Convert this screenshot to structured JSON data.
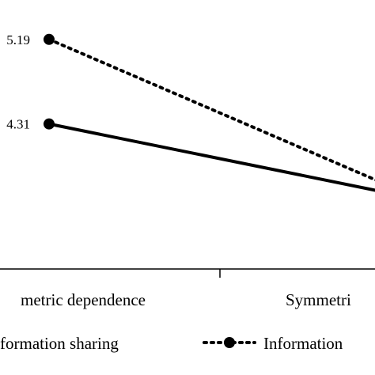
{
  "chart_data": {
    "type": "line",
    "categories": [
      "metric dependence",
      "Symmetri"
    ],
    "series": [
      {
        "name": "formation sharing",
        "style": "solid",
        "values": [
          4.31,
          null
        ],
        "data_labels": [
          "4.31",
          ""
        ]
      },
      {
        "name": "Information",
        "style": "dotted",
        "values": [
          5.19,
          null
        ],
        "data_labels": [
          "5.19",
          ""
        ]
      }
    ],
    "title": "",
    "xlabel": "",
    "ylabel": "",
    "ylim": [
      2.8,
      5.6
    ],
    "grid": false,
    "legend_position": "bottom",
    "line_color": "#000000"
  }
}
